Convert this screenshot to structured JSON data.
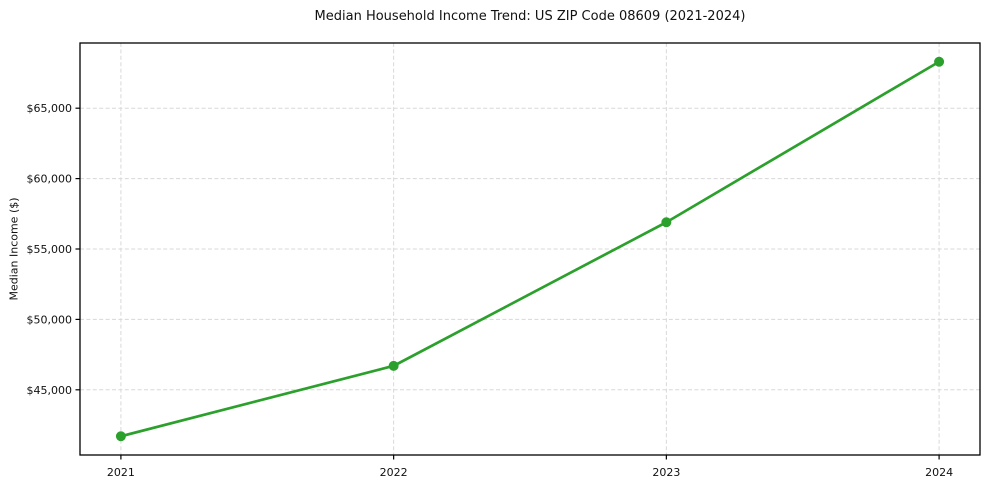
{
  "chart_data": {
    "type": "line",
    "title": "Median Household Income Trend: US ZIP Code 08609 (2021-2024)",
    "xlabel": "",
    "ylabel": "Median Income ($)",
    "x": [
      2021,
      2022,
      2023,
      2024
    ],
    "x_tick_labels": [
      "2021",
      "2022",
      "2023",
      "2024"
    ],
    "series": [
      {
        "name": "Median household income",
        "values": [
          41700,
          46700,
          56900,
          68300
        ],
        "color": "#2ca02c",
        "marker": "circle"
      }
    ],
    "y_ticks": [
      45000,
      50000,
      55000,
      60000,
      65000
    ],
    "y_tick_labels": [
      "$45,000",
      "$50,000",
      "$55,000",
      "$60,000",
      "$65,000"
    ],
    "xlim": [
      2020.85,
      2024.15
    ],
    "ylim": [
      40370,
      69630
    ],
    "grid": true,
    "grid_style": "dashed",
    "legend": "none",
    "colors": {
      "line": "#2ca02c",
      "grid": "#d8d8d8",
      "axis": "#000000",
      "text": "#111111",
      "background": "#ffffff"
    }
  }
}
